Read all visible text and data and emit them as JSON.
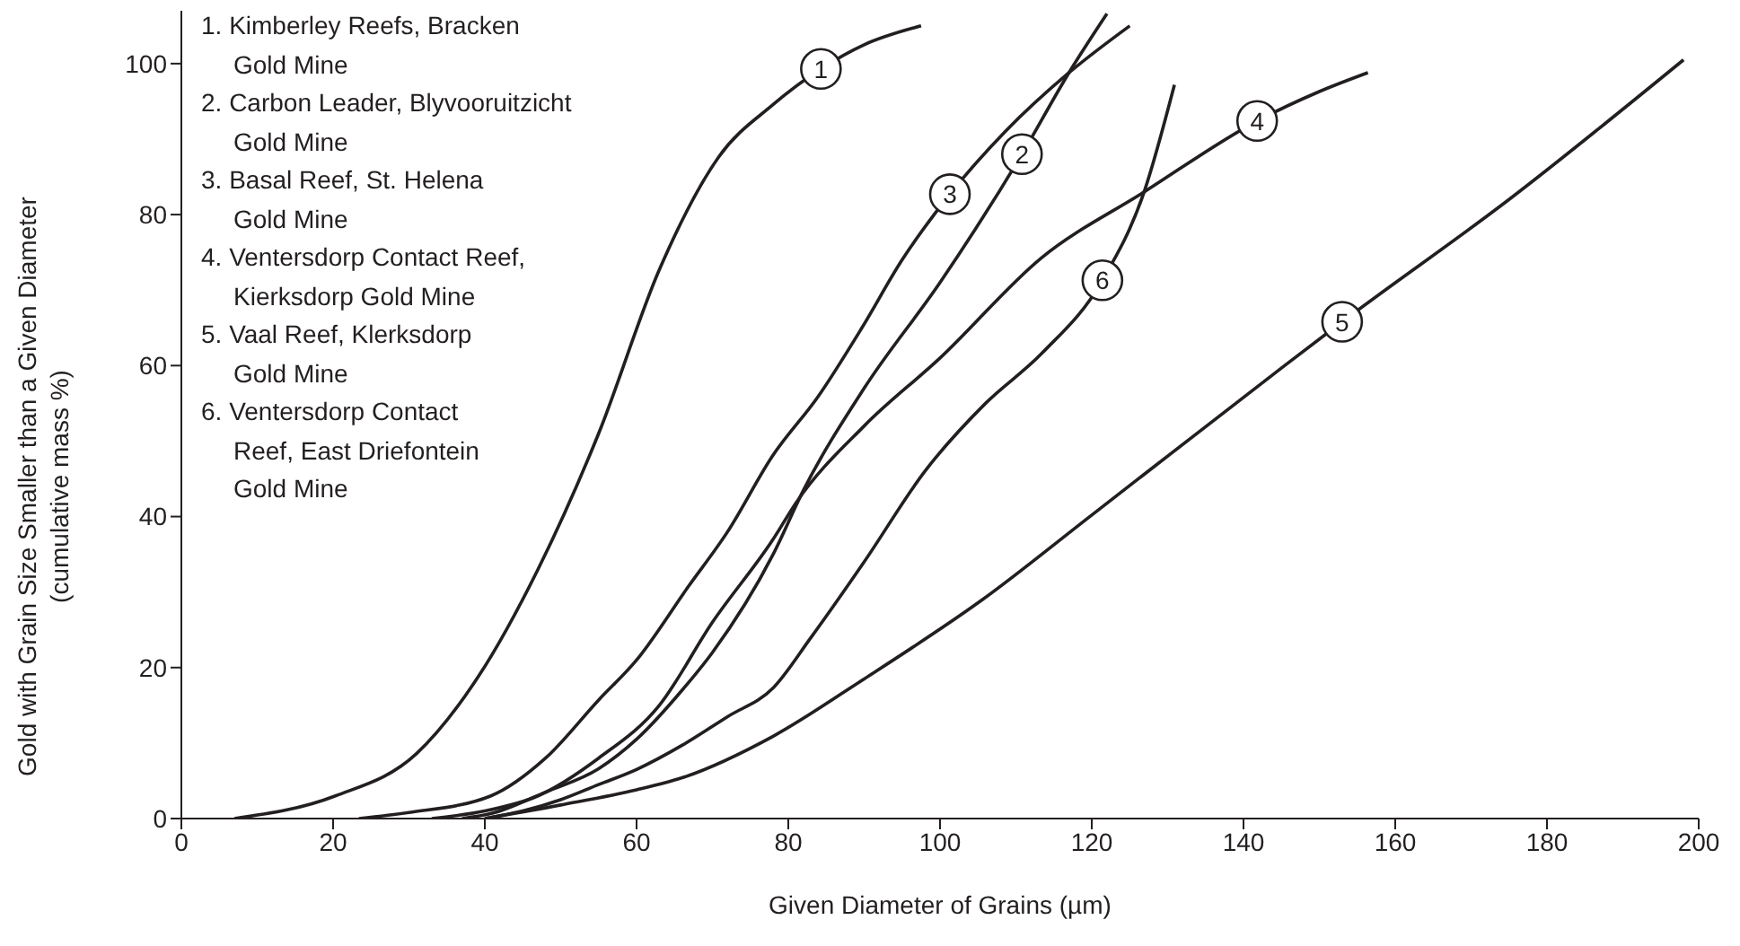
{
  "chart_data": {
    "type": "line",
    "xlabel": "Given Diameter of Grains (µm)",
    "ylabel": "Gold with Grain Size Smaller than a Given Diameter\n(cumulative mass %)",
    "xlim": [
      0,
      200
    ],
    "ylim": [
      0,
      107
    ],
    "xticks": [
      0,
      20,
      40,
      60,
      80,
      100,
      120,
      140,
      160,
      180,
      200
    ],
    "yticks": [
      0,
      20,
      40,
      60,
      80,
      100
    ],
    "marker": "none",
    "line_style": "solid",
    "series": [
      {
        "color": "#231f20",
        "x": [
          7,
          20.3,
          31,
          39.2,
          47,
          55,
          63,
          70.8,
          77.9,
          84.3,
          90,
          97.5
        ],
        "values": [
          0,
          3,
          8.6,
          18.9,
          33,
          51,
          72.7,
          87.6,
          94.5,
          99.3,
          102.5,
          105
        ]
      },
      {
        "color": "#231f20",
        "x": [
          37,
          41,
          48,
          55,
          60,
          66,
          70,
          78,
          82,
          90,
          100,
          110.8,
          117,
          122
        ],
        "values": [
          0,
          0.7,
          3.5,
          6.6,
          10.5,
          17,
          22,
          35,
          43.5,
          57,
          71,
          88,
          98.8,
          106.6
        ]
      },
      {
        "color": "#231f20",
        "x": [
          23.4,
          30,
          40.8,
          48,
          55,
          60,
          66.8,
          72,
          77.9,
          84,
          89.7,
          95,
          101.3,
          108.6,
          117,
          125
        ],
        "values": [
          0,
          0.8,
          3,
          8,
          15.7,
          21,
          30.7,
          38,
          48,
          56,
          65,
          74,
          82.7,
          91,
          98.8,
          105
        ]
      },
      {
        "color": "#231f20",
        "x": [
          33,
          40,
          47,
          55,
          63,
          70,
          78,
          81,
          90,
          100,
          113.4,
          126.9,
          141.8,
          150,
          156.4
        ],
        "values": [
          0,
          1,
          3,
          8,
          15,
          26,
          37,
          41.8,
          52,
          61,
          74.3,
          83,
          92.4,
          96.3,
          98.8
        ]
      },
      {
        "color": "#231f20",
        "x": [
          40,
          50,
          60,
          66,
          78,
          90,
          105.6,
          120,
          144,
          153,
          175,
          198
        ],
        "values": [
          0,
          1.8,
          3.8,
          5.4,
          10.9,
          18.5,
          29,
          40.2,
          58.9,
          65.8,
          82,
          100.5
        ]
      },
      {
        "color": "#231f20",
        "x": [
          40,
          45,
          50,
          55,
          60,
          66,
          72,
          78,
          83,
          90,
          98,
          106,
          113.4,
          121.4,
          126.9,
          130.9
        ],
        "values": [
          0,
          1,
          2.5,
          4.5,
          6.5,
          9.7,
          13.5,
          17.3,
          24,
          34,
          46,
          55,
          61.6,
          71.3,
          83,
          97.2
        ]
      }
    ],
    "annotations": [
      "1. Kimberley Reefs, Bracken\nGold Mine",
      "2. Carbon Leader, Blyvooruitzicht\nGold Mine",
      "3. Basal Reef, St. Helena\nGold Mine",
      "4. Ventersdorp Contact Reef,\nKierksdorp Gold Mine",
      "5. Vaal Reef, Klerksdorp\nGold Mine",
      "6. Ventersdorp Contact\nReef, East Driefontein\nGold Mine",
      {
        "text": "1",
        "x": 84.3,
        "y": 99.3
      },
      {
        "text": "2",
        "x": 110.8,
        "y": 88
      },
      {
        "text": "3",
        "x": 101.3,
        "y": 82.7
      },
      {
        "text": "4",
        "x": 141.8,
        "y": 92.4
      },
      {
        "text": "5",
        "x": 153,
        "y": 65.8
      },
      {
        "text": "6",
        "x": 121.4,
        "y": 71.3
      }
    ]
  }
}
